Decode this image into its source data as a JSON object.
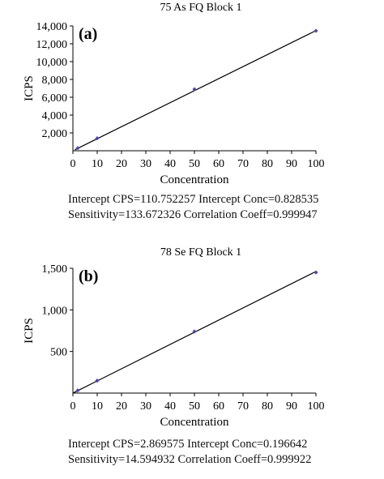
{
  "chart_data": [
    {
      "type": "scatter",
      "title": "75 As FQ Block 1",
      "panel_label": "(a)",
      "xlabel": "Concentration",
      "ylabel": "ICPS",
      "xlim": [
        0,
        100
      ],
      "ylim": [
        0,
        14000
      ],
      "xticks": [
        "0",
        "10",
        "20",
        "30",
        "40",
        "50",
        "60",
        "70",
        "80",
        "90",
        "100"
      ],
      "yticks": [
        "2,000",
        "4,000",
        "6,000",
        "8,000",
        "10,000",
        "12,000",
        "14,000"
      ],
      "points": [
        {
          "x": 2,
          "y": 300
        },
        {
          "x": 10,
          "y": 1400
        },
        {
          "x": 50,
          "y": 6900
        },
        {
          "x": 100,
          "y": 13450
        }
      ],
      "fit_line": {
        "x0": 0.8,
        "y0": 110,
        "x1": 100,
        "y1": 13478
      },
      "stats_line1": "Intercept CPS=110.752257 Intercept Conc=0.828535",
      "stats_line2": "Sensitivity=133.672326 Correlation Coeff=0.999947",
      "marker_color": "#4a4aa8",
      "line_color": "#000000"
    },
    {
      "type": "scatter",
      "title": "78 Se FQ Block 1",
      "panel_label": "(b)",
      "xlabel": "Concentration",
      "ylabel": "ICPS",
      "xlim": [
        0,
        100
      ],
      "ylim": [
        0,
        1500
      ],
      "xticks": [
        "0",
        "10",
        "20",
        "30",
        "40",
        "50",
        "60",
        "70",
        "80",
        "90",
        "100"
      ],
      "yticks": [
        "500",
        "1,000",
        "1,500"
      ],
      "points": [
        {
          "x": 2,
          "y": 32
        },
        {
          "x": 10,
          "y": 150
        },
        {
          "x": 50,
          "y": 740
        },
        {
          "x": 100,
          "y": 1450
        }
      ],
      "fit_line": {
        "x0": 0.2,
        "y0": 2.9,
        "x1": 100,
        "y1": 1462
      },
      "stats_line1": "Intercept CPS=2.869575 Intercept Conc=0.196642",
      "stats_line2": "Sensitivity=14.594932 Correlation Coeff=0.999922",
      "marker_color": "#4a4aa8",
      "line_color": "#000000"
    }
  ]
}
